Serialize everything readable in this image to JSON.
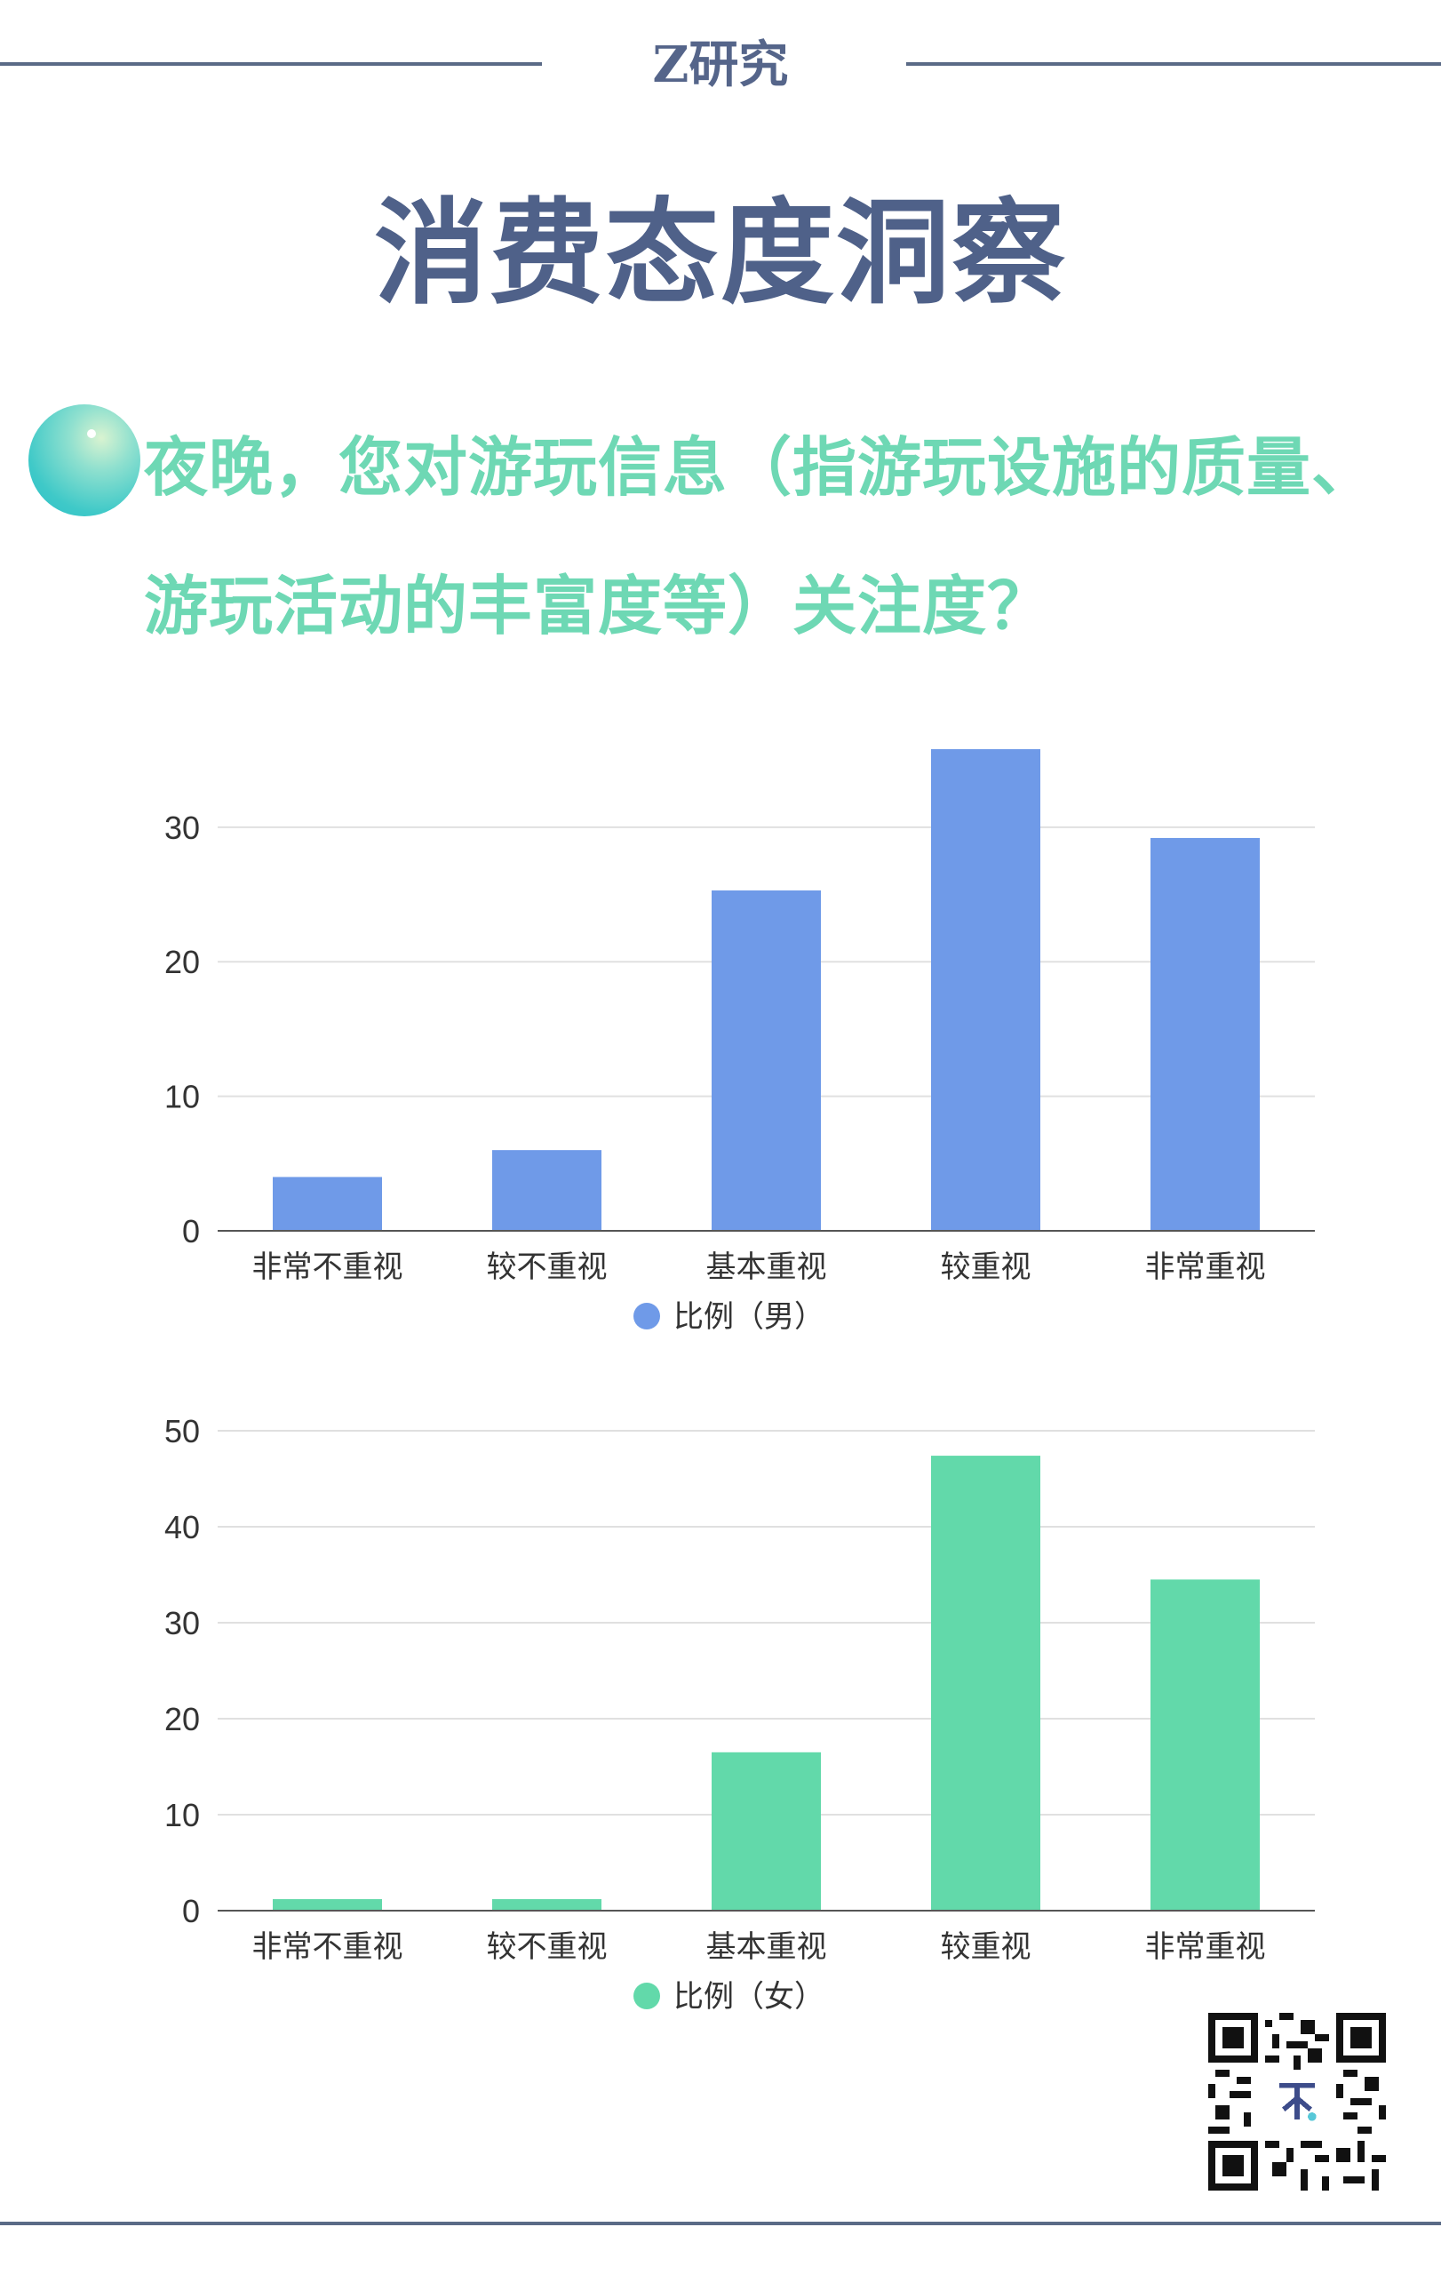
{
  "header": {
    "brand": "Z研究",
    "title": "消费态度洞察"
  },
  "question": "夜晚，您对游玩信息（指游玩设施的质量、游玩活动的丰富度等）关注度？",
  "chart_data": [
    {
      "type": "bar",
      "categories": [
        "非常不重视",
        "较不重视",
        "基本重视",
        "较重视",
        "非常重视"
      ],
      "series": [
        {
          "name": "比例（男）",
          "values": [
            4,
            6,
            25.3,
            35.8,
            29.2
          ]
        }
      ],
      "ylim": [
        0,
        36
      ],
      "yticks": [
        "0",
        "10",
        "20",
        "30"
      ],
      "legend_label": "比例（男）",
      "color": "#6f9ae8",
      "grid": true,
      "legend_position": "bottom"
    },
    {
      "type": "bar",
      "categories": [
        "非常不重视",
        "较不重视",
        "基本重视",
        "较重视",
        "非常重视"
      ],
      "series": [
        {
          "name": "比例（女）",
          "values": [
            1.2,
            1.2,
            16.5,
            47.4,
            34.5
          ]
        }
      ],
      "ylim": [
        0,
        50
      ],
      "yticks": [
        "0",
        "10",
        "20",
        "30",
        "40",
        "50"
      ],
      "legend_label": "比例（女）",
      "color": "#62d9aa",
      "grid": true,
      "legend_position": "bottom"
    }
  ]
}
